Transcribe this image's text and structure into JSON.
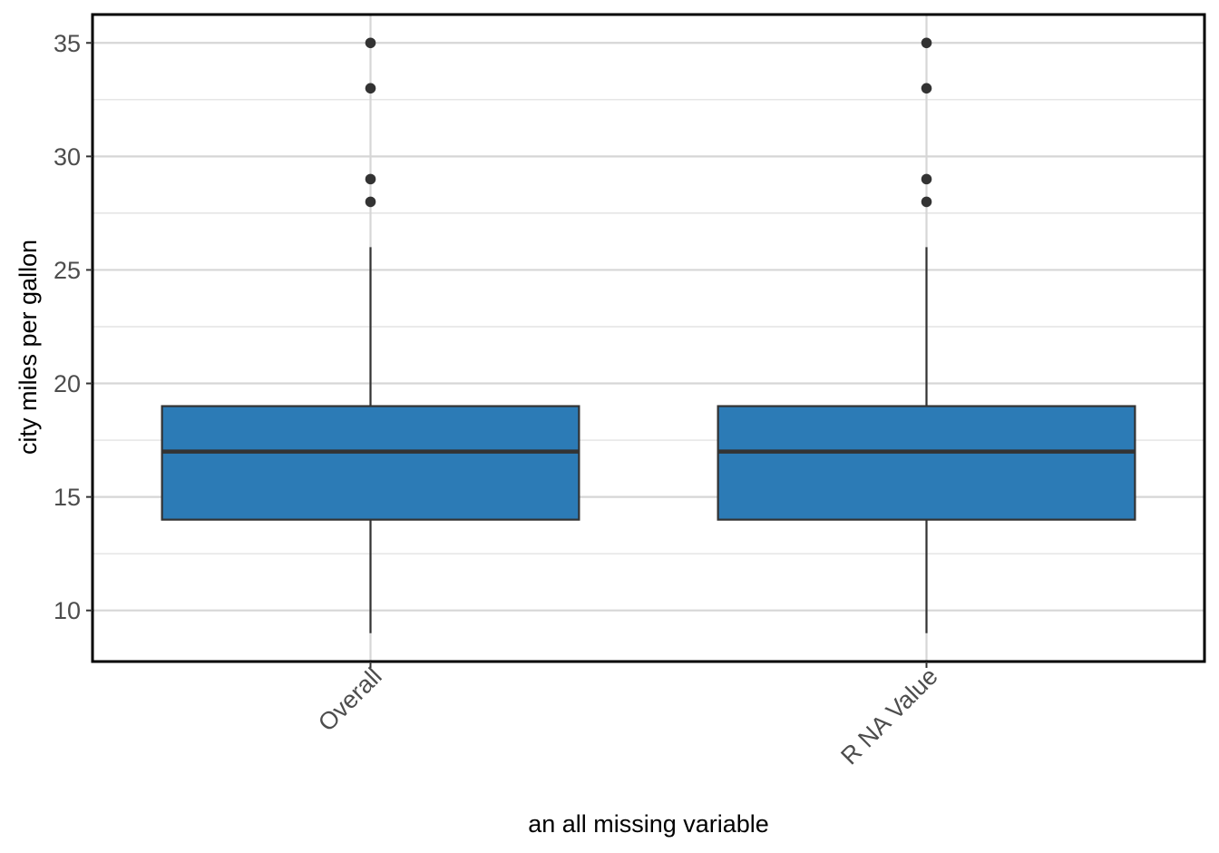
{
  "chart_data": {
    "type": "box",
    "title": "",
    "xlabel": "an all missing variable",
    "ylabel": "city miles per gallon",
    "categories": [
      "Overall",
      "R NA Value"
    ],
    "ylim": [
      7.75,
      36.25
    ],
    "y_ticks": [
      10,
      15,
      20,
      25,
      30,
      35
    ],
    "y_minor_ticks": [
      12.5,
      17.5,
      22.5,
      27.5,
      32.5
    ],
    "grid": true,
    "legend": "none",
    "fill_color": "#2c7bb6",
    "series": [
      {
        "category": "Overall",
        "whisker_low": 9,
        "q1": 14,
        "median": 17,
        "q3": 19,
        "whisker_high": 26,
        "outliers": [
          28,
          29,
          33,
          35
        ]
      },
      {
        "category": "R NA Value",
        "whisker_low": 9,
        "q1": 14,
        "median": 17,
        "q3": 19,
        "whisker_high": 26,
        "outliers": [
          28,
          29,
          33,
          35
        ]
      }
    ]
  }
}
